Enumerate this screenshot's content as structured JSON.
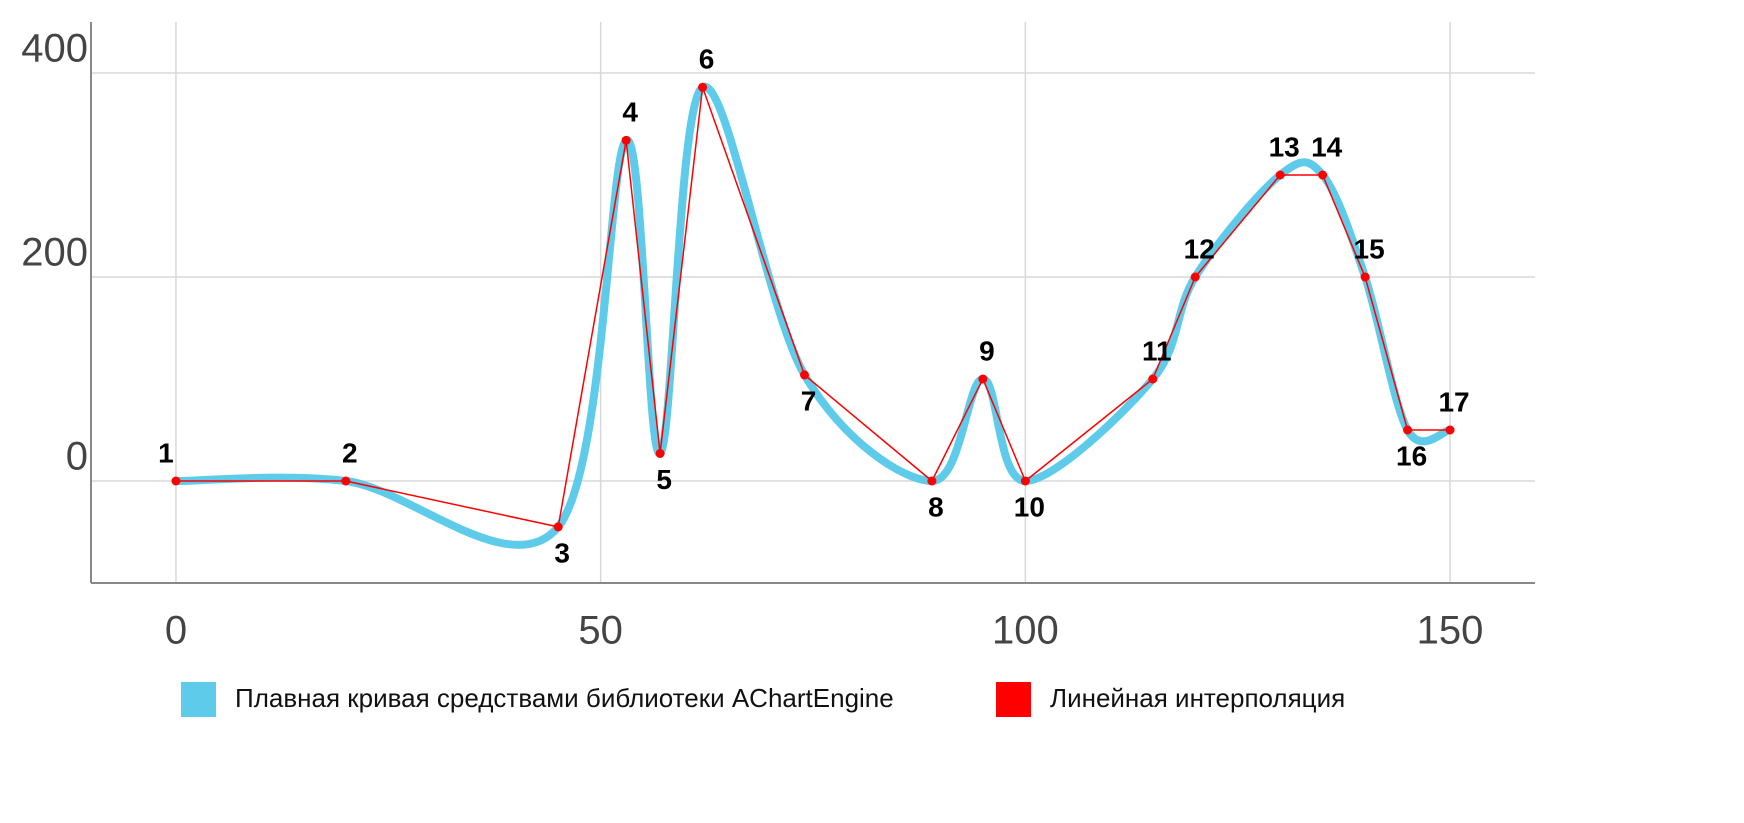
{
  "chart_data": {
    "type": "line",
    "x": [
      0,
      20,
      45,
      53,
      57,
      62,
      74,
      89,
      95,
      100,
      115,
      120,
      130,
      135,
      140,
      145,
      150
    ],
    "point_labels": [
      "1",
      "2",
      "3",
      "4",
      "5",
      "6",
      "7",
      "8",
      "9",
      "10",
      "11",
      "12",
      "13",
      "14",
      "15",
      "16",
      "17"
    ],
    "series": [
      {
        "name": "Плавная кривая средствами библиотеки AChartEngine",
        "color": "#5ecbea",
        "smooth": true,
        "values": [
          0,
          0,
          -45,
          334,
          27,
          386,
          104,
          0,
          100,
          0,
          100,
          200,
          300,
          300,
          200,
          50,
          50
        ]
      },
      {
        "name": "Линейная интерполяция",
        "color": "#ff0000",
        "smooth": false,
        "values": [
          0,
          0,
          -45,
          334,
          27,
          386,
          104,
          0,
          100,
          0,
          100,
          200,
          300,
          300,
          200,
          50,
          50
        ]
      }
    ],
    "xlim": [
      -10,
      160
    ],
    "ylim": [
      -100,
      450
    ],
    "xticks": [
      0,
      50,
      100,
      150
    ],
    "yticks": [
      0,
      200,
      400
    ],
    "grid": true
  }
}
